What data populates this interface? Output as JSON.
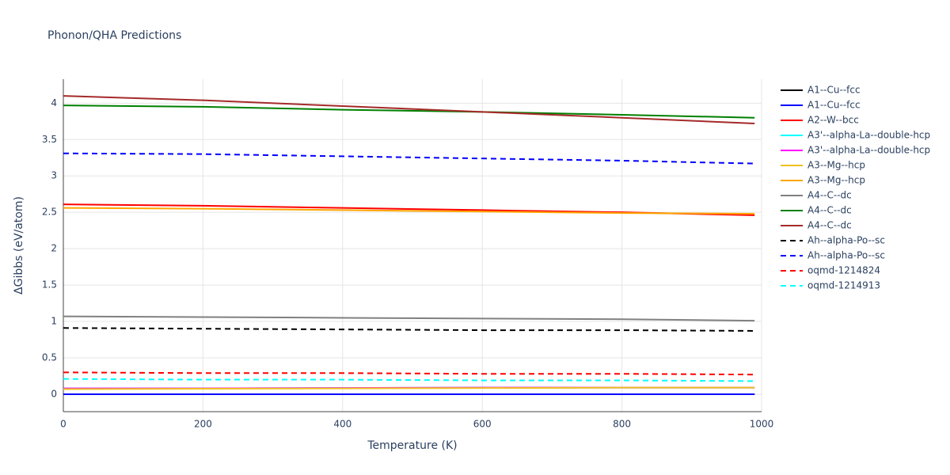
{
  "chart_data": {
    "type": "line",
    "title": "Phonon/QHA Predictions",
    "x_label": "Temperature (K)",
    "y_label": "ΔGibbs (eV/atom)",
    "x": [
      0,
      200,
      400,
      600,
      800,
      990
    ],
    "xlim": [
      0,
      1000
    ],
    "xticks": [
      0,
      200,
      400,
      600,
      800,
      1000
    ],
    "ylim": [
      -0.24,
      4.33
    ],
    "yticks": [
      0,
      0.5,
      1,
      1.5,
      2,
      2.5,
      3,
      3.5,
      4
    ],
    "grid": true,
    "legend": "right",
    "series": [
      {
        "name": "A1--Cu--fcc",
        "color": "#000000",
        "dash": false,
        "values": [
          0,
          0,
          0,
          0,
          0,
          0
        ]
      },
      {
        "name": "A1--Cu--fcc",
        "color": "#0000ff",
        "dash": false,
        "values": [
          0,
          0,
          0,
          0,
          0,
          0
        ]
      },
      {
        "name": "A2--W--bcc",
        "color": "#ff0000",
        "dash": false,
        "values": [
          2.61,
          2.59,
          2.56,
          2.53,
          2.5,
          2.46
        ]
      },
      {
        "name": "A3'--alpha-La--double-hcp",
        "color": "#00ffff",
        "dash": false,
        "values": [
          0.08,
          0.08,
          0.085,
          0.09,
          0.09,
          0.09
        ]
      },
      {
        "name": "A3'--alpha-La--double-hcp",
        "color": "#ff00ff",
        "dash": false,
        "values": [
          0.08,
          0.08,
          0.085,
          0.09,
          0.09,
          0.09
        ]
      },
      {
        "name": "A3--Mg--hcp",
        "color": "#f0c020",
        "dash": false,
        "values": [
          0.07,
          0.075,
          0.08,
          0.085,
          0.09,
          0.09
        ]
      },
      {
        "name": "A3--Mg--hcp",
        "color": "#ffa500",
        "dash": false,
        "values": [
          2.56,
          2.55,
          2.53,
          2.51,
          2.49,
          2.48
        ]
      },
      {
        "name": "A4--C--dc",
        "color": "#808080",
        "dash": false,
        "values": [
          1.07,
          1.06,
          1.05,
          1.04,
          1.03,
          1.01
        ]
      },
      {
        "name": "A4--C--dc",
        "color": "#008000",
        "dash": false,
        "values": [
          3.97,
          3.95,
          3.91,
          3.88,
          3.84,
          3.8
        ]
      },
      {
        "name": "A4--C--dc",
        "color": "#a52a2a",
        "dash": false,
        "values": [
          4.1,
          4.04,
          3.96,
          3.88,
          3.8,
          3.72
        ]
      },
      {
        "name": "Ah--alpha-Po--sc",
        "color": "#000000",
        "dash": true,
        "values": [
          0.91,
          0.9,
          0.89,
          0.88,
          0.88,
          0.87
        ]
      },
      {
        "name": "Ah--alpha-Po--sc",
        "color": "#0000ff",
        "dash": true,
        "values": [
          3.31,
          3.3,
          3.27,
          3.24,
          3.21,
          3.17
        ]
      },
      {
        "name": "oqmd-1214824",
        "color": "#ff0000",
        "dash": true,
        "values": [
          0.3,
          0.29,
          0.29,
          0.28,
          0.28,
          0.27
        ]
      },
      {
        "name": "oqmd-1214913",
        "color": "#00ffff",
        "dash": true,
        "values": [
          0.21,
          0.2,
          0.2,
          0.19,
          0.19,
          0.18
        ]
      }
    ]
  }
}
